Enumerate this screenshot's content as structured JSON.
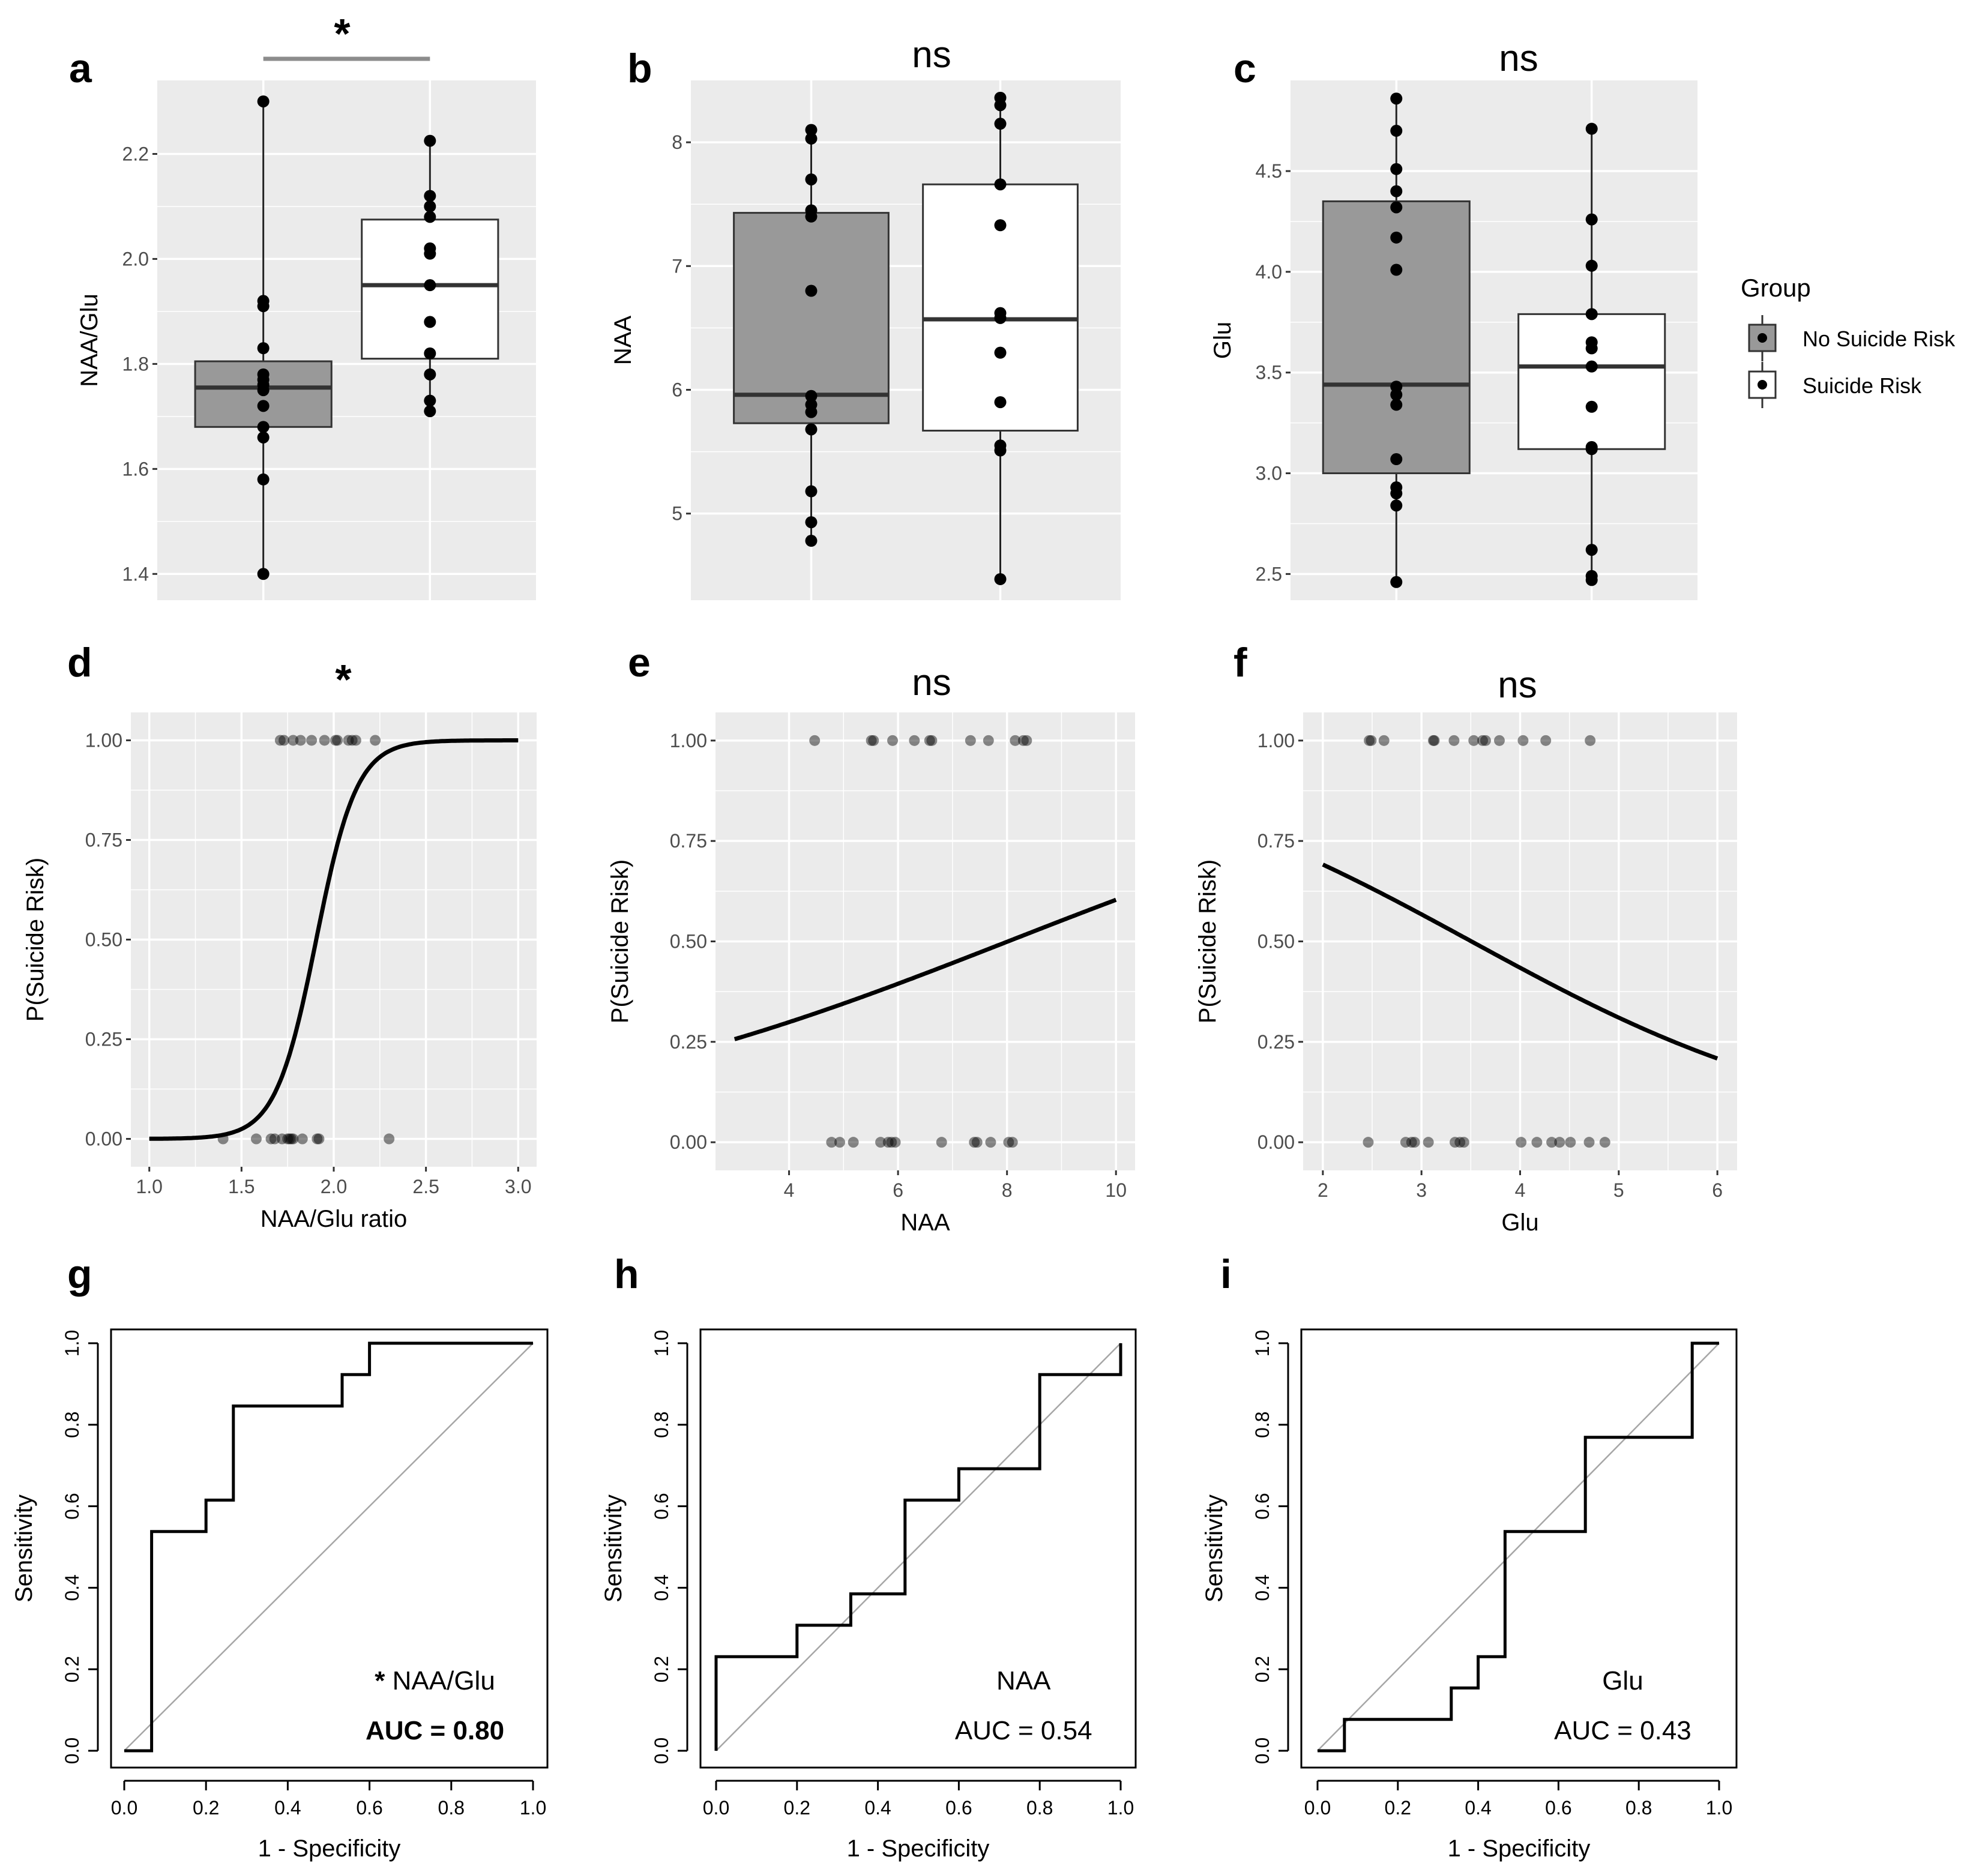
{
  "figure": {
    "colors": {
      "panel_bg": "#ebebeb",
      "grid": "#ffffff",
      "box_fill_no_risk": "#999999",
      "box_fill_risk": "#ffffff"
    }
  },
  "legend": {
    "title": "Group",
    "entries": [
      {
        "label": "No Suicide Risk",
        "color": "#999999"
      },
      {
        "label": "Suicide Risk",
        "color": "#ffffff"
      }
    ]
  },
  "chart_data": [
    {
      "id": "a",
      "type": "box",
      "panel_label": "a",
      "significance": "*",
      "ylabel": "NAA/Glu",
      "ylim": [
        1.35,
        2.34
      ],
      "yticks": [
        1.4,
        1.6,
        1.8,
        2.0,
        2.2
      ],
      "ytick_labels": [
        "1.4",
        "1.6",
        "1.8",
        "2.0",
        "2.2"
      ],
      "groups": [
        {
          "name": "No Suicide Risk",
          "color": "#999999",
          "q1": 1.68,
          "median": 1.755,
          "q3": 1.805,
          "whisker_low": 1.4,
          "whisker_high": 2.3,
          "points": [
            2.3,
            1.92,
            1.91,
            1.83,
            1.78,
            1.77,
            1.76,
            1.75,
            1.72,
            1.68,
            1.66,
            1.58,
            1.4
          ]
        },
        {
          "name": "Suicide Risk",
          "color": "#ffffff",
          "q1": 1.81,
          "median": 1.95,
          "q3": 2.075,
          "whisker_low": 1.705,
          "whisker_high": 2.225,
          "points": [
            2.225,
            2.12,
            2.1,
            2.08,
            2.02,
            2.01,
            1.95,
            1.88,
            1.82,
            1.78,
            1.73,
            1.71
          ]
        }
      ]
    },
    {
      "id": "b",
      "type": "box",
      "panel_label": "b",
      "significance": "ns",
      "ylabel": "NAA",
      "ylim": [
        4.3,
        8.5
      ],
      "yticks": [
        5,
        6,
        7,
        8
      ],
      "ytick_labels": [
        "5",
        "6",
        "7",
        "8"
      ],
      "groups": [
        {
          "name": "No Suicide Risk",
          "color": "#999999",
          "q1": 5.73,
          "median": 5.96,
          "q3": 7.43,
          "whisker_low": 4.78,
          "whisker_high": 8.1,
          "points": [
            8.1,
            8.03,
            7.7,
            7.45,
            7.4,
            6.8,
            5.95,
            5.88,
            5.82,
            5.68,
            5.18,
            4.93,
            4.78
          ]
        },
        {
          "name": "Suicide Risk",
          "color": "#ffffff",
          "q1": 5.67,
          "median": 6.57,
          "q3": 7.66,
          "whisker_low": 4.47,
          "whisker_high": 8.36,
          "points": [
            8.36,
            8.3,
            8.15,
            7.66,
            7.33,
            6.62,
            6.58,
            6.3,
            5.9,
            5.55,
            5.51,
            4.47
          ]
        }
      ]
    },
    {
      "id": "c",
      "type": "box",
      "panel_label": "c",
      "significance": "ns",
      "ylabel": "Glu",
      "ylim": [
        2.37,
        4.95
      ],
      "yticks": [
        2.5,
        3.0,
        3.5,
        4.0,
        4.5
      ],
      "ytick_labels": [
        "2.5",
        "3.0",
        "3.5",
        "4.0",
        "4.5"
      ],
      "groups": [
        {
          "name": "No Suicide Risk",
          "color": "#999999",
          "q1": 3.0,
          "median": 3.44,
          "q3": 4.35,
          "whisker_low": 2.46,
          "whisker_high": 4.86,
          "points": [
            4.86,
            4.7,
            4.51,
            4.4,
            4.32,
            4.17,
            4.01,
            3.43,
            3.39,
            3.34,
            3.07,
            2.93,
            2.9,
            2.84,
            2.46
          ]
        },
        {
          "name": "Suicide Risk",
          "color": "#ffffff",
          "q1": 3.12,
          "median": 3.53,
          "q3": 3.79,
          "whisker_low": 2.47,
          "whisker_high": 4.71,
          "points": [
            4.71,
            4.26,
            4.03,
            3.79,
            3.65,
            3.62,
            3.53,
            3.33,
            3.13,
            3.12,
            2.62,
            2.49,
            2.47
          ]
        }
      ]
    },
    {
      "id": "d",
      "type": "scatter",
      "panel_label": "d",
      "significance": "*",
      "xlabel": "NAA/Glu ratio",
      "ylabel": "P(Suicide Risk)",
      "xlim": [
        0.9,
        3.1
      ],
      "ylim": [
        -0.07,
        1.07
      ],
      "xticks": [
        1.0,
        1.5,
        2.0,
        2.5,
        3.0
      ],
      "xtick_labels": [
        "1.0",
        "1.5",
        "2.0",
        "2.5",
        "3.0"
      ],
      "yticks": [
        0.0,
        0.25,
        0.5,
        0.75,
        1.0
      ],
      "ytick_labels": [
        "0.00",
        "0.25",
        "0.50",
        "0.75",
        "1.00"
      ],
      "points_y1": [
        1.71,
        1.73,
        1.78,
        1.82,
        1.88,
        1.95,
        2.01,
        2.02,
        2.08,
        2.1,
        2.12,
        2.225
      ],
      "points_y0": [
        1.4,
        1.58,
        1.66,
        1.68,
        1.72,
        1.75,
        1.76,
        1.77,
        1.78,
        1.83,
        1.91,
        1.92,
        2.3
      ],
      "curve": {
        "form": "logistic",
        "intercept": -17.28,
        "slope": 9.07,
        "x_range": [
          1.0,
          3.0
        ]
      }
    },
    {
      "id": "e",
      "type": "scatter",
      "panel_label": "e",
      "significance": "ns",
      "xlabel": "NAA",
      "ylabel": "P(Suicide Risk)",
      "xlim": [
        2.65,
        10.35
      ],
      "ylim": [
        -0.07,
        1.07
      ],
      "xticks": [
        4,
        6,
        8,
        10
      ],
      "xtick_labels": [
        "4",
        "6",
        "8",
        "10"
      ],
      "yticks": [
        0.0,
        0.25,
        0.5,
        0.75,
        1.0
      ],
      "ytick_labels": [
        "0.00",
        "0.25",
        "0.50",
        "0.75",
        "1.00"
      ],
      "points_y1": [
        4.47,
        5.51,
        5.55,
        5.9,
        6.3,
        6.58,
        6.62,
        7.33,
        7.66,
        8.15,
        8.3,
        8.36
      ],
      "points_y0": [
        4.78,
        4.93,
        5.18,
        5.68,
        5.82,
        5.88,
        5.95,
        6.8,
        7.4,
        7.45,
        7.7,
        8.03,
        8.1
      ],
      "curve": {
        "form": "logistic",
        "intercept": -1.7,
        "slope": 0.212,
        "x_range": [
          3,
          10
        ]
      }
    },
    {
      "id": "f",
      "type": "scatter",
      "panel_label": "f",
      "significance": "ns",
      "xlabel": "Glu",
      "ylabel": "P(Suicide Risk)",
      "xlim": [
        1.8,
        6.2
      ],
      "ylim": [
        -0.07,
        1.07
      ],
      "xticks": [
        2,
        3,
        4,
        5,
        6
      ],
      "xtick_labels": [
        "2",
        "3",
        "4",
        "5",
        "6"
      ],
      "yticks": [
        0.0,
        0.25,
        0.5,
        0.75,
        1.0
      ],
      "ytick_labels": [
        "0.00",
        "0.25",
        "0.50",
        "0.75",
        "1.00"
      ],
      "points_y1": [
        2.47,
        2.49,
        2.62,
        3.12,
        3.13,
        3.33,
        3.53,
        3.62,
        3.65,
        3.79,
        4.03,
        4.26,
        4.71
      ],
      "points_y0": [
        2.46,
        2.84,
        2.9,
        2.93,
        3.07,
        3.34,
        3.39,
        3.43,
        4.01,
        4.17,
        4.32,
        4.4,
        4.51,
        4.7,
        4.86
      ],
      "curve": {
        "form": "logistic",
        "intercept": 1.876,
        "slope": -0.535,
        "x_range": [
          2,
          6
        ]
      }
    },
    {
      "id": "g",
      "type": "roc",
      "panel_label": "g",
      "xlabel": "1 - Specificity",
      "ylabel": "Sensitivity",
      "xticks": [
        0.0,
        0.2,
        0.4,
        0.6,
        0.8,
        1.0
      ],
      "xtick_labels": [
        "0.0",
        "0.2",
        "0.4",
        "0.6",
        "0.8",
        "1.0"
      ],
      "yticks": [
        0.0,
        0.2,
        0.4,
        0.6,
        0.8,
        1.0
      ],
      "ytick_labels": [
        "0.0",
        "0.2",
        "0.4",
        "0.6",
        "0.8",
        "1.0"
      ],
      "annotation_star": "*",
      "annotation_label": "NAA/Glu",
      "annotation_auc": "AUC = 0.80",
      "auc": 0.8,
      "auc_bold": true,
      "curve": [
        [
          0,
          0
        ],
        [
          0.067,
          0
        ],
        [
          0.067,
          0.538
        ],
        [
          0.2,
          0.538
        ],
        [
          0.2,
          0.615
        ],
        [
          0.267,
          0.615
        ],
        [
          0.267,
          0.846
        ],
        [
          0.533,
          0.846
        ],
        [
          0.533,
          0.923
        ],
        [
          0.6,
          0.923
        ],
        [
          0.6,
          1.0
        ],
        [
          1.0,
          1.0
        ]
      ]
    },
    {
      "id": "h",
      "type": "roc",
      "panel_label": "h",
      "xlabel": "1 - Specificity",
      "ylabel": "Sensitivity",
      "xticks": [
        0.0,
        0.2,
        0.4,
        0.6,
        0.8,
        1.0
      ],
      "xtick_labels": [
        "0.0",
        "0.2",
        "0.4",
        "0.6",
        "0.8",
        "1.0"
      ],
      "yticks": [
        0.0,
        0.2,
        0.4,
        0.6,
        0.8,
        1.0
      ],
      "ytick_labels": [
        "0.0",
        "0.2",
        "0.4",
        "0.6",
        "0.8",
        "1.0"
      ],
      "annotation_star": "",
      "annotation_label": "NAA",
      "annotation_auc": "AUC = 0.54",
      "auc": 0.54,
      "auc_bold": false,
      "curve": [
        [
          0,
          0
        ],
        [
          0,
          0.231
        ],
        [
          0.2,
          0.231
        ],
        [
          0.2,
          0.308
        ],
        [
          0.333,
          0.308
        ],
        [
          0.333,
          0.385
        ],
        [
          0.467,
          0.385
        ],
        [
          0.467,
          0.615
        ],
        [
          0.6,
          0.615
        ],
        [
          0.6,
          0.692
        ],
        [
          0.8,
          0.692
        ],
        [
          0.8,
          0.923
        ],
        [
          1.0,
          0.923
        ],
        [
          1.0,
          1.0
        ]
      ]
    },
    {
      "id": "i",
      "type": "roc",
      "panel_label": "i",
      "xlabel": "1 - Specificity",
      "ylabel": "Sensitivity",
      "xticks": [
        0.0,
        0.2,
        0.4,
        0.6,
        0.8,
        1.0
      ],
      "xtick_labels": [
        "0.0",
        "0.2",
        "0.4",
        "0.6",
        "0.8",
        "1.0"
      ],
      "yticks": [
        0.0,
        0.2,
        0.4,
        0.6,
        0.8,
        1.0
      ],
      "ytick_labels": [
        "0.0",
        "0.2",
        "0.4",
        "0.6",
        "0.8",
        "1.0"
      ],
      "annotation_star": "",
      "annotation_label": "Glu",
      "annotation_auc": "AUC = 0.43",
      "auc": 0.43,
      "auc_bold": false,
      "curve": [
        [
          0,
          0
        ],
        [
          0.067,
          0
        ],
        [
          0.067,
          0.077
        ],
        [
          0.333,
          0.077
        ],
        [
          0.333,
          0.154
        ],
        [
          0.4,
          0.154
        ],
        [
          0.4,
          0.231
        ],
        [
          0.467,
          0.231
        ],
        [
          0.467,
          0.538
        ],
        [
          0.667,
          0.538
        ],
        [
          0.667,
          0.769
        ],
        [
          0.933,
          0.769
        ],
        [
          0.933,
          1.0
        ],
        [
          1.0,
          1.0
        ]
      ]
    }
  ]
}
